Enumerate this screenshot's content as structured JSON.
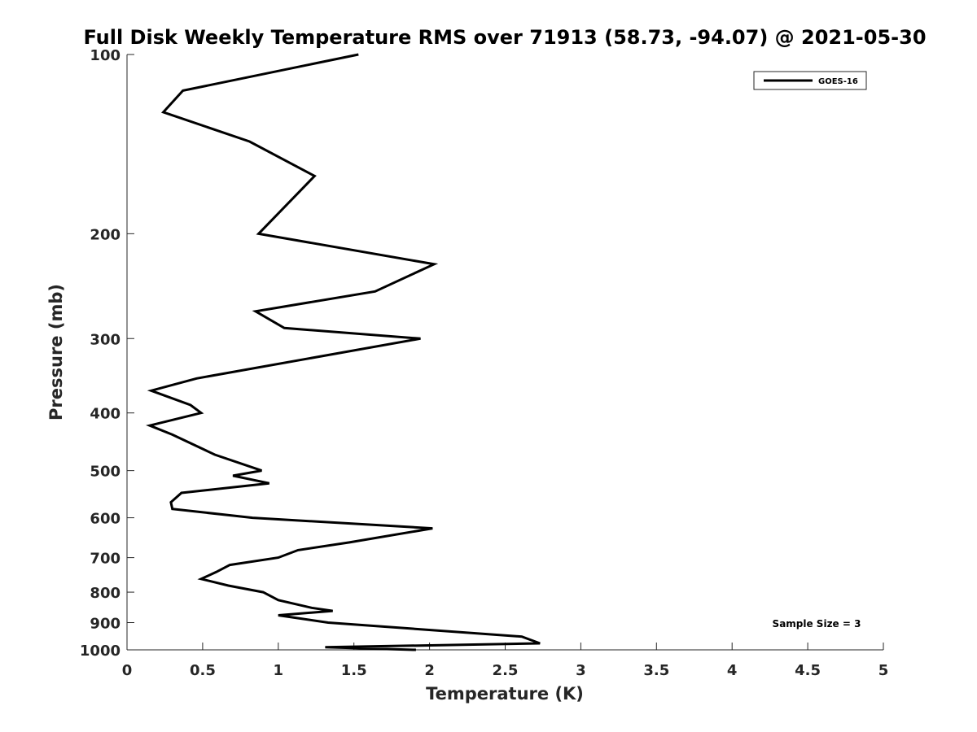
{
  "chart_data": {
    "type": "line",
    "title": "Full Disk Weekly Temperature RMS over 71913 (58.73, -94.07) @ 2021-05-30",
    "xlabel": "Temperature (K)",
    "ylabel": "Pressure (mb)",
    "xlim": [
      0,
      5
    ],
    "ylim": [
      100,
      1000
    ],
    "y_scale": "log",
    "y_reversed": true,
    "x_ticks": [
      "0",
      "0.5",
      "1",
      "1.5",
      "2",
      "2.5",
      "3",
      "3.5",
      "4",
      "4.5",
      "5"
    ],
    "y_ticks": [
      "100",
      "200",
      "300",
      "400",
      "500",
      "600",
      "700",
      "800",
      "900",
      "1000"
    ],
    "grid": false,
    "legend_position": "top-right",
    "annotation": "Sample Size = 3",
    "series": [
      {
        "name": "GOES-16",
        "color": "#000000",
        "x": [
          1.53,
          0.37,
          0.24,
          0.81,
          1.24,
          0.87,
          2.03,
          1.64,
          0.85,
          1.04,
          1.94,
          0.46,
          0.16,
          0.42,
          0.49,
          0.15,
          0.3,
          0.58,
          0.89,
          0.7,
          0.94,
          0.36,
          0.29,
          0.3,
          0.83,
          2.02,
          1.47,
          1.13,
          1.0,
          0.68,
          0.59,
          0.49,
          0.67,
          0.9,
          1.0,
          1.22,
          1.36,
          1.0,
          1.33,
          2.61,
          2.73,
          1.31,
          1.91
        ],
        "y": [
          100,
          115,
          125,
          140,
          160,
          200,
          225,
          250,
          270,
          288,
          300,
          350,
          367,
          388,
          400,
          420,
          435,
          470,
          500,
          510,
          525,
          545,
          565,
          580,
          600,
          625,
          660,
          680,
          700,
          720,
          740,
          760,
          780,
          800,
          825,
          850,
          860,
          875,
          900,
          950,
          975,
          990,
          1000
        ]
      }
    ]
  }
}
